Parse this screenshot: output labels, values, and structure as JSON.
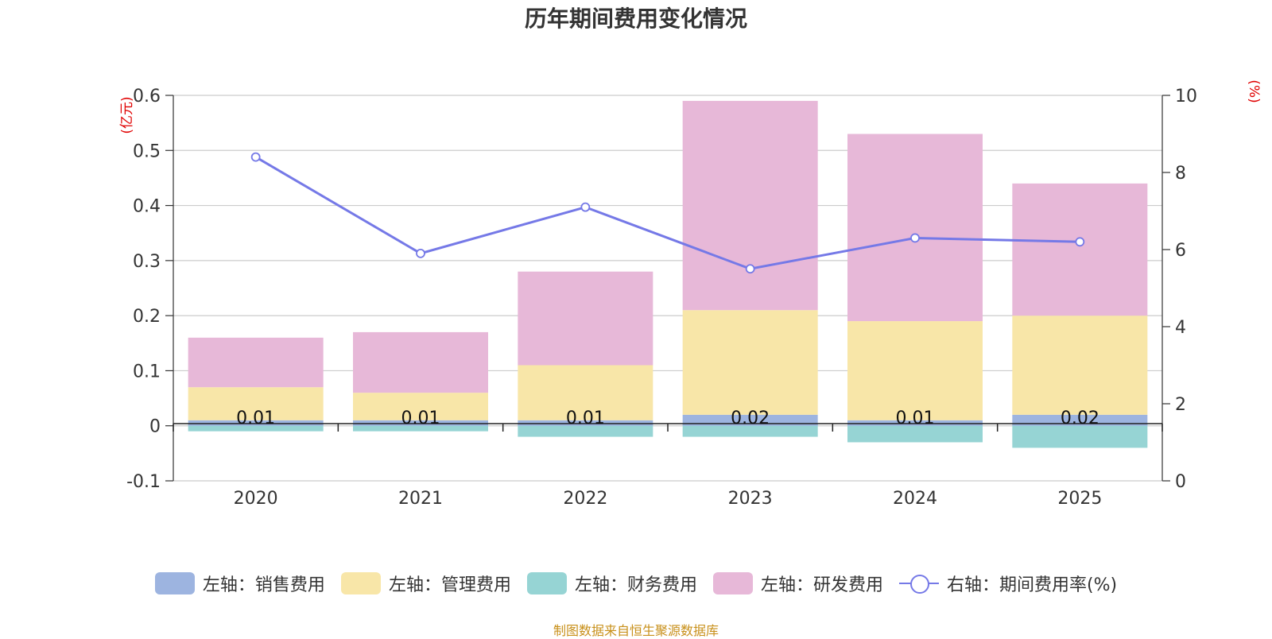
{
  "chart_data": {
    "type": "bar",
    "title": "历年期间费用变化情况",
    "categories": [
      "2020",
      "2021",
      "2022",
      "2023",
      "2024",
      "2025"
    ],
    "left_axis": {
      "unit_label": "(亿元)",
      "ylim": [
        -0.1,
        0.6
      ],
      "ticks": [
        "-0.1",
        "0",
        "0.1",
        "0.2",
        "0.3",
        "0.4",
        "0.5",
        "0.6"
      ]
    },
    "right_axis": {
      "unit_label": "(%)",
      "ylim": [
        0,
        10
      ],
      "ticks": [
        "0",
        "2",
        "4",
        "6",
        "8",
        "10"
      ]
    },
    "series": [
      {
        "name": "左轴：销售费用",
        "type": "bar",
        "axis": "left",
        "color": "#9db4e0",
        "values": [
          0.01,
          0.01,
          0.01,
          0.02,
          0.01,
          0.02
        ]
      },
      {
        "name": "左轴：管理费用",
        "type": "bar",
        "axis": "left",
        "color": "#f8e6a8",
        "values": [
          0.06,
          0.05,
          0.1,
          0.19,
          0.18,
          0.18
        ]
      },
      {
        "name": "左轴：财务费用",
        "type": "bar",
        "axis": "left",
        "color": "#96d4d4",
        "values": [
          -0.01,
          -0.01,
          -0.02,
          -0.02,
          -0.03,
          -0.04
        ]
      },
      {
        "name": "左轴：研发费用",
        "type": "bar",
        "axis": "left",
        "color": "#e7b8d8",
        "values": [
          0.09,
          0.11,
          0.17,
          0.38,
          0.34,
          0.24
        ]
      },
      {
        "name": "右轴：期间费用率(%)",
        "type": "line",
        "axis": "right",
        "color": "#7579e7",
        "values": [
          8.4,
          5.9,
          7.1,
          5.5,
          6.3,
          6.2
        ]
      }
    ],
    "bar_labels": [
      "0.01",
      "0.01",
      "0.01",
      "0.02",
      "0.01",
      "0.02"
    ],
    "legend_position": "bottom-center"
  },
  "source_text": "制图数据来自恒生聚源数据库"
}
